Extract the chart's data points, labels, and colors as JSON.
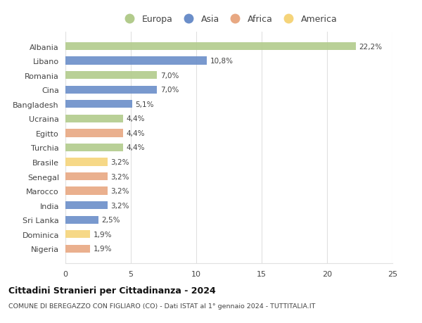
{
  "categories": [
    "Nigeria",
    "Dominica",
    "Sri Lanka",
    "India",
    "Marocco",
    "Senegal",
    "Brasile",
    "Turchia",
    "Egitto",
    "Ucraina",
    "Bangladesh",
    "Cina",
    "Romania",
    "Libano",
    "Albania"
  ],
  "values": [
    1.9,
    1.9,
    2.5,
    3.2,
    3.2,
    3.2,
    3.2,
    4.4,
    4.4,
    4.4,
    5.1,
    7.0,
    7.0,
    10.8,
    22.2
  ],
  "labels": [
    "1,9%",
    "1,9%",
    "2,5%",
    "3,2%",
    "3,2%",
    "3,2%",
    "3,2%",
    "4,4%",
    "4,4%",
    "4,4%",
    "5,1%",
    "7,0%",
    "7,0%",
    "10,8%",
    "22,2%"
  ],
  "colors": [
    "#e8a882",
    "#f5d47a",
    "#6b8ec9",
    "#6b8ec9",
    "#e8a882",
    "#e8a882",
    "#f5d47a",
    "#b2cb8c",
    "#e8a882",
    "#b2cb8c",
    "#6b8ec9",
    "#6b8ec9",
    "#b2cb8c",
    "#6b8ec9",
    "#b2cb8c"
  ],
  "continent_colors": {
    "Europa": "#b2cb8c",
    "Asia": "#6b8ec9",
    "Africa": "#e8a882",
    "America": "#f5d47a"
  },
  "legend_labels": [
    "Europa",
    "Asia",
    "Africa",
    "America"
  ],
  "title1": "Cittadini Stranieri per Cittadinanza - 2024",
  "title2": "COMUNE DI BEREGAZZO CON FIGLIARO (CO) - Dati ISTAT al 1° gennaio 2024 - TUTTITALIA.IT",
  "xlim": [
    0,
    25
  ],
  "xticks": [
    0,
    5,
    10,
    15,
    20,
    25
  ],
  "background_color": "#ffffff",
  "bar_background": "#ffffff",
  "grid_color": "#e0e0e0"
}
